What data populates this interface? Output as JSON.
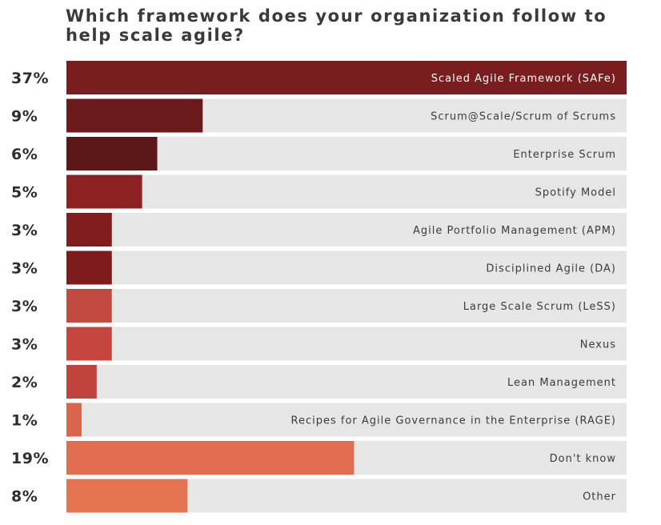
{
  "chart_data": {
    "type": "bar",
    "orientation": "horizontal",
    "title": "Which framework does your organization follow to help scale agile?",
    "xlabel": "",
    "ylabel": "",
    "xlim": [
      0,
      37
    ],
    "grid": false,
    "value_labels": [
      "37%",
      "9%",
      "6%",
      "5%",
      "3%",
      "3%",
      "3%",
      "3%",
      "2%",
      "1%",
      "19%",
      "8%"
    ],
    "categories": [
      "Scaled Agile Framework (SAFe)",
      "Scrum@Scale/Scrum of Scrums",
      "Enterprise Scrum",
      "Spotify Model",
      "Agile Portfolio Management (APM)",
      "Disciplined Agile (DA)",
      "Large Scale Scrum (LeSS)",
      "Nexus",
      "Lean Management",
      "Recipes for Agile Governance in the Enterprise (RAGE)",
      "Don't know",
      "Other"
    ],
    "values": [
      37,
      9,
      6,
      5,
      3,
      3,
      3,
      3,
      2,
      1,
      19,
      8
    ],
    "bar_colors": [
      "#7a1d1f",
      "#6a1a1b",
      "#5e1719",
      "#8b2120",
      "#821d1e",
      "#7e1c1d",
      "#c34a41",
      "#c4463e",
      "#c0443c",
      "#d9654a",
      "#e06e4f",
      "#e4744f"
    ],
    "track_color": "#e6e6e6"
  }
}
